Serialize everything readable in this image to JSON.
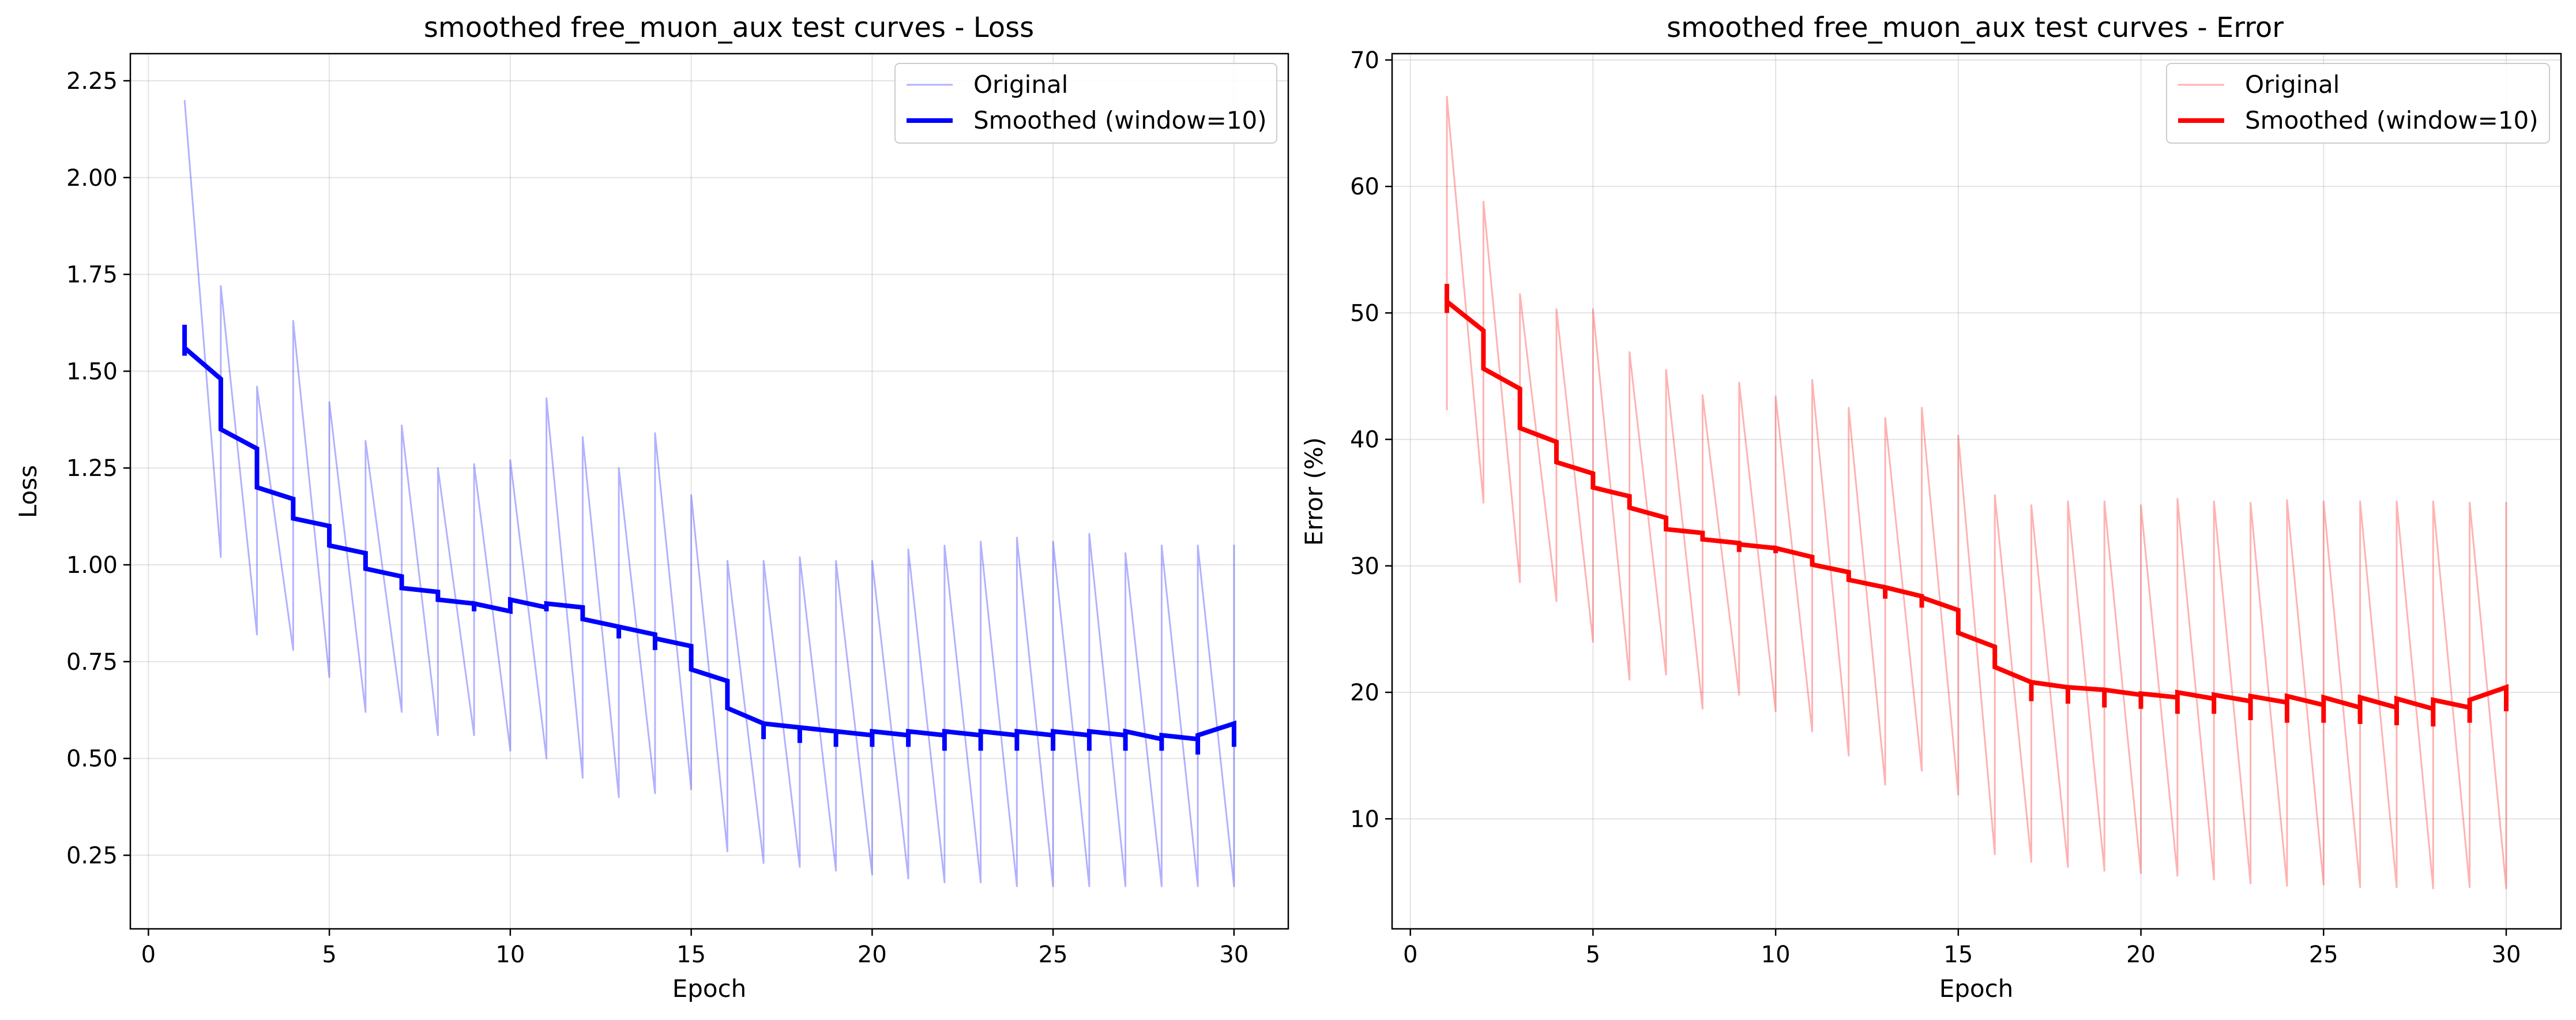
{
  "chart_data": [
    {
      "type": "line",
      "title": "smoothed free_muon_aux test curves - Loss",
      "xlabel": "Epoch",
      "ylabel": "Loss",
      "xlim": [
        -0.5,
        31.5
      ],
      "ylim": [
        0.06,
        2.32
      ],
      "xticks": [
        0,
        5,
        10,
        15,
        20,
        25,
        30
      ],
      "yticks": [
        0.25,
        0.5,
        0.75,
        1.0,
        1.25,
        1.5,
        1.75,
        2.0,
        2.25
      ],
      "ytick_labels": [
        "0.25",
        "0.50",
        "0.75",
        "1.00",
        "1.25",
        "1.50",
        "1.75",
        "2.00",
        "2.25"
      ],
      "grid": true,
      "legend_position": "upper right",
      "series": [
        {
          "name": "Original",
          "color": "#0000ff",
          "opacity": 0.3,
          "linewidth": "thin",
          "segments": [
            {
              "x": [
                1,
                2
              ],
              "y": [
                2.2,
                1.02
              ]
            },
            {
              "x": [
                2,
                3
              ],
              "y": [
                1.72,
                0.82
              ]
            },
            {
              "x": [
                3,
                4
              ],
              "y": [
                1.46,
                0.78
              ]
            },
            {
              "x": [
                4,
                5
              ],
              "y": [
                1.63,
                0.71
              ]
            },
            {
              "x": [
                5,
                6
              ],
              "y": [
                1.42,
                0.62
              ]
            },
            {
              "x": [
                6,
                7
              ],
              "y": [
                1.32,
                0.62
              ]
            },
            {
              "x": [
                7,
                8
              ],
              "y": [
                1.36,
                0.56
              ]
            },
            {
              "x": [
                8,
                9
              ],
              "y": [
                1.25,
                0.56
              ]
            },
            {
              "x": [
                9,
                10
              ],
              "y": [
                1.26,
                0.52
              ]
            },
            {
              "x": [
                10,
                11
              ],
              "y": [
                1.27,
                0.5
              ]
            },
            {
              "x": [
                11,
                12
              ],
              "y": [
                1.43,
                0.45
              ]
            },
            {
              "x": [
                12,
                13
              ],
              "y": [
                1.33,
                0.4
              ]
            },
            {
              "x": [
                13,
                14
              ],
              "y": [
                1.25,
                0.41
              ]
            },
            {
              "x": [
                14,
                15
              ],
              "y": [
                1.34,
                0.42
              ]
            },
            {
              "x": [
                15,
                16
              ],
              "y": [
                1.18,
                0.26
              ]
            },
            {
              "x": [
                16,
                17
              ],
              "y": [
                1.01,
                0.23
              ]
            },
            {
              "x": [
                17,
                18
              ],
              "y": [
                1.01,
                0.22
              ]
            },
            {
              "x": [
                18,
                19
              ],
              "y": [
                1.02,
                0.21
              ]
            },
            {
              "x": [
                19,
                20
              ],
              "y": [
                1.01,
                0.2
              ]
            },
            {
              "x": [
                20,
                21
              ],
              "y": [
                1.01,
                0.19
              ]
            },
            {
              "x": [
                21,
                22
              ],
              "y": [
                1.04,
                0.18
              ]
            },
            {
              "x": [
                22,
                23
              ],
              "y": [
                1.05,
                0.18
              ]
            },
            {
              "x": [
                23,
                24
              ],
              "y": [
                1.06,
                0.17
              ]
            },
            {
              "x": [
                24,
                25
              ],
              "y": [
                1.07,
                0.17
              ]
            },
            {
              "x": [
                25,
                26
              ],
              "y": [
                1.06,
                0.17
              ]
            },
            {
              "x": [
                26,
                27
              ],
              "y": [
                1.08,
                0.17
              ]
            },
            {
              "x": [
                27,
                28
              ],
              "y": [
                1.03,
                0.17
              ]
            },
            {
              "x": [
                28,
                29
              ],
              "y": [
                1.05,
                0.17
              ]
            },
            {
              "x": [
                29,
                30
              ],
              "y": [
                1.05,
                0.17
              ]
            },
            {
              "x": [
                30,
                30
              ],
              "y": [
                1.05,
                0.17
              ]
            }
          ]
        },
        {
          "name": "Smoothed (window=10)",
          "color": "#0000ff",
          "opacity": 1,
          "linewidth": "thick",
          "x": [
            1,
            1,
            1,
            2,
            2,
            3,
            3,
            4,
            4,
            5,
            5,
            6,
            6,
            7,
            7,
            8,
            8,
            9,
            9,
            9,
            10,
            10,
            11,
            11,
            11,
            12,
            12,
            13,
            13,
            13,
            14,
            14,
            14,
            15,
            15,
            16,
            16,
            17,
            17,
            17,
            18,
            18,
            18,
            19,
            19,
            19,
            20,
            20,
            20,
            21,
            21,
            21,
            22,
            22,
            22,
            23,
            23,
            23,
            24,
            24,
            24,
            25,
            25,
            25,
            26,
            26,
            26,
            27,
            27,
            27,
            28,
            28,
            28,
            29,
            29,
            29,
            30,
            30
          ],
          "y": [
            1.62,
            1.54,
            1.56,
            1.48,
            1.35,
            1.3,
            1.2,
            1.17,
            1.12,
            1.1,
            1.05,
            1.03,
            0.99,
            0.97,
            0.94,
            0.93,
            0.91,
            0.9,
            0.88,
            0.9,
            0.88,
            0.91,
            0.89,
            0.88,
            0.9,
            0.89,
            0.86,
            0.84,
            0.81,
            0.84,
            0.82,
            0.78,
            0.81,
            0.79,
            0.73,
            0.7,
            0.63,
            0.59,
            0.55,
            0.59,
            0.58,
            0.54,
            0.58,
            0.57,
            0.53,
            0.57,
            0.56,
            0.53,
            0.57,
            0.56,
            0.53,
            0.57,
            0.56,
            0.52,
            0.57,
            0.56,
            0.52,
            0.57,
            0.56,
            0.52,
            0.57,
            0.56,
            0.52,
            0.57,
            0.56,
            0.52,
            0.57,
            0.56,
            0.52,
            0.57,
            0.55,
            0.52,
            0.56,
            0.55,
            0.51,
            0.56,
            0.59,
            0.53
          ]
        }
      ]
    },
    {
      "type": "line",
      "title": "smoothed free_muon_aux test curves - Error",
      "xlabel": "Epoch",
      "ylabel": "Error (%)",
      "xlim": [
        -0.5,
        31.5
      ],
      "ylim": [
        1.3,
        70.5
      ],
      "xticks": [
        0,
        5,
        10,
        15,
        20,
        25,
        30
      ],
      "yticks": [
        10,
        20,
        30,
        40,
        50,
        60,
        70
      ],
      "ytick_labels": [
        "10",
        "20",
        "30",
        "40",
        "50",
        "60",
        "70"
      ],
      "grid": true,
      "legend_position": "upper right",
      "series": [
        {
          "name": "Original",
          "color": "#ff0000",
          "opacity": 0.3,
          "linewidth": "thin",
          "segments": [
            {
              "x": [
                1,
                1
              ],
              "y": [
                42.3,
                67.1
              ]
            },
            {
              "x": [
                1,
                2
              ],
              "y": [
                67.1,
                35.0
              ]
            },
            {
              "x": [
                2,
                3
              ],
              "y": [
                58.8,
                28.7
              ]
            },
            {
              "x": [
                3,
                4
              ],
              "y": [
                51.5,
                27.2
              ]
            },
            {
              "x": [
                4,
                5
              ],
              "y": [
                50.3,
                24.0
              ]
            },
            {
              "x": [
                5,
                6
              ],
              "y": [
                50.3,
                21.0
              ]
            },
            {
              "x": [
                6,
                7
              ],
              "y": [
                46.9,
                21.4
              ]
            },
            {
              "x": [
                7,
                8
              ],
              "y": [
                45.5,
                18.7
              ]
            },
            {
              "x": [
                8,
                9
              ],
              "y": [
                43.5,
                19.8
              ]
            },
            {
              "x": [
                9,
                10
              ],
              "y": [
                44.5,
                18.5
              ]
            },
            {
              "x": [
                10,
                11
              ],
              "y": [
                43.4,
                16.9
              ]
            },
            {
              "x": [
                11,
                12
              ],
              "y": [
                44.7,
                15.0
              ]
            },
            {
              "x": [
                12,
                13
              ],
              "y": [
                42.5,
                12.7
              ]
            },
            {
              "x": [
                13,
                14
              ],
              "y": [
                41.7,
                13.8
              ]
            },
            {
              "x": [
                14,
                15
              ],
              "y": [
                42.5,
                11.9
              ]
            },
            {
              "x": [
                15,
                16
              ],
              "y": [
                40.3,
                7.2
              ]
            },
            {
              "x": [
                16,
                17
              ],
              "y": [
                35.6,
                6.6
              ]
            },
            {
              "x": [
                17,
                18
              ],
              "y": [
                34.8,
                6.2
              ]
            },
            {
              "x": [
                18,
                19
              ],
              "y": [
                35.1,
                5.9
              ]
            },
            {
              "x": [
                19,
                20
              ],
              "y": [
                35.1,
                5.7
              ]
            },
            {
              "x": [
                20,
                21
              ],
              "y": [
                34.8,
                5.5
              ]
            },
            {
              "x": [
                21,
                22
              ],
              "y": [
                35.3,
                5.2
              ]
            },
            {
              "x": [
                22,
                23
              ],
              "y": [
                35.1,
                4.9
              ]
            },
            {
              "x": [
                23,
                24
              ],
              "y": [
                35.0,
                4.7
              ]
            },
            {
              "x": [
                24,
                25
              ],
              "y": [
                35.2,
                4.8
              ]
            },
            {
              "x": [
                25,
                26
              ],
              "y": [
                35.1,
                4.6
              ]
            },
            {
              "x": [
                26,
                27
              ],
              "y": [
                35.1,
                4.6
              ]
            },
            {
              "x": [
                27,
                28
              ],
              "y": [
                35.1,
                4.5
              ]
            },
            {
              "x": [
                28,
                29
              ],
              "y": [
                35.1,
                4.6
              ]
            },
            {
              "x": [
                29,
                30
              ],
              "y": [
                35.0,
                4.5
              ]
            },
            {
              "x": [
                30,
                30
              ],
              "y": [
                35.0,
                4.5
              ]
            }
          ]
        },
        {
          "name": "Smoothed (window=10)",
          "color": "#ff0000",
          "opacity": 1,
          "linewidth": "thick",
          "x": [
            1,
            1,
            1,
            2,
            2,
            3,
            3,
            4,
            4,
            5,
            5,
            6,
            6,
            7,
            7,
            8,
            8,
            9,
            9,
            9,
            10,
            10,
            10,
            11,
            11,
            12,
            12,
            13,
            13,
            13,
            14,
            14,
            14,
            15,
            15,
            16,
            16,
            17,
            17,
            17,
            18,
            18,
            18,
            19,
            19,
            19,
            20,
            20,
            20,
            21,
            21,
            21,
            22,
            22,
            22,
            23,
            23,
            23,
            24,
            24,
            24,
            25,
            25,
            25,
            26,
            26,
            26,
            27,
            27,
            27,
            28,
            28,
            28,
            29,
            29,
            29,
            30,
            30
          ],
          "y": [
            52.3,
            50.0,
            50.9,
            48.6,
            45.6,
            44.0,
            40.9,
            39.8,
            38.2,
            37.3,
            36.2,
            35.5,
            34.6,
            33.8,
            32.9,
            32.6,
            32.1,
            31.8,
            31.1,
            31.7,
            31.4,
            31.0,
            31.4,
            30.7,
            30.1,
            29.5,
            28.9,
            28.3,
            27.4,
            28.3,
            27.6,
            26.7,
            27.5,
            26.5,
            24.7,
            23.6,
            22.0,
            20.8,
            19.3,
            20.8,
            20.4,
            19.1,
            20.4,
            20.2,
            18.8,
            20.2,
            19.8,
            18.7,
            19.9,
            19.6,
            18.3,
            20.0,
            19.5,
            18.3,
            19.8,
            19.3,
            17.8,
            19.7,
            19.2,
            17.6,
            19.7,
            19.0,
            17.6,
            19.6,
            18.8,
            17.5,
            19.6,
            18.8,
            17.4,
            19.5,
            18.7,
            17.3,
            19.4,
            18.8,
            17.6,
            19.4,
            20.4,
            18.5
          ]
        }
      ]
    }
  ]
}
